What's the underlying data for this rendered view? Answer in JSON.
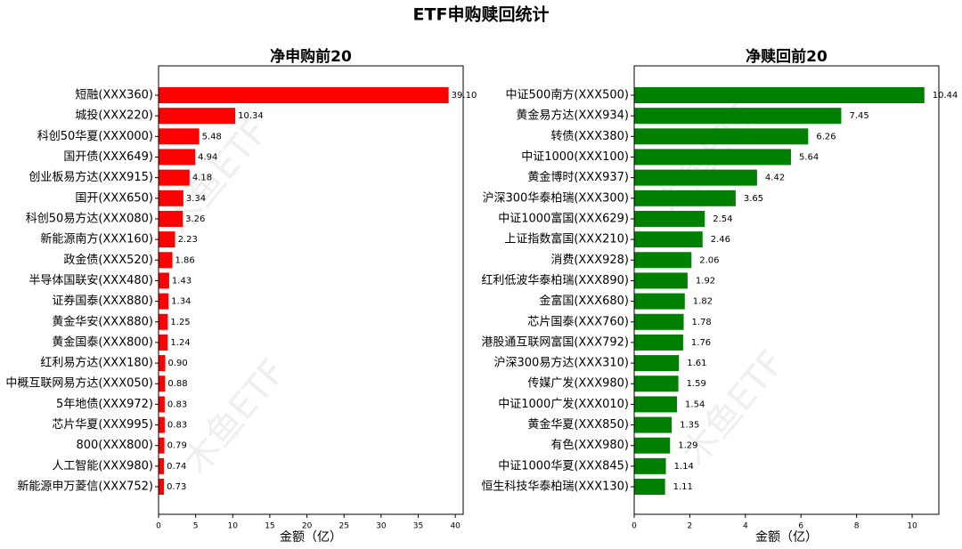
{
  "title": "ETF申购赎回统计",
  "watermark": "木鱼ETF",
  "chart_data": [
    {
      "type": "barh",
      "title": "净申购前20",
      "xlabel": "金额（亿）",
      "color": "#ff0000",
      "categories": [
        "短融(XXX360)",
        "城投(XXX220)",
        "科创50华夏(XXX000)",
        "国开债(XXX649)",
        "创业板易方达(XXX915)",
        "国开(XXX650)",
        "科创50易方达(XXX080)",
        "新能源南方(XXX160)",
        "政金债(XXX520)",
        "半导体国联安(XXX480)",
        "证券国泰(XXX880)",
        "黄金华安(XXX880)",
        "黄金国泰(XXX800)",
        "红利易方达(XXX180)",
        "中概互联网易方达(XXX050)",
        "5年地债(XXX972)",
        "芯片华夏(XXX995)",
        "800(XXX800)",
        "人工智能(XXX980)",
        "新能源申万菱信(XXX752)"
      ],
      "values": [
        39.1,
        10.34,
        5.48,
        4.94,
        4.18,
        3.34,
        3.26,
        2.23,
        1.86,
        1.43,
        1.34,
        1.25,
        1.24,
        0.9,
        0.88,
        0.83,
        0.83,
        0.79,
        0.74,
        0.73
      ],
      "value_labels": [
        "39.10",
        "10.34",
        "5.48",
        "4.94",
        "4.18",
        "3.34",
        "3.26",
        "2.23",
        "1.86",
        "1.43",
        "1.34",
        "1.25",
        "1.24",
        "0.90",
        "0.88",
        "0.83",
        "0.83",
        "0.79",
        "0.74",
        "0.73"
      ],
      "xlim": [
        0,
        41.06
      ],
      "xticks": [
        0,
        5,
        10,
        15,
        20,
        25,
        30,
        35,
        40
      ]
    },
    {
      "type": "barh",
      "title": "净赎回前20",
      "xlabel": "金额（亿）",
      "color": "#008000",
      "categories": [
        "中证500南方(XXX500)",
        "黄金易方达(XXX934)",
        "转债(XXX380)",
        "中证1000(XXX100)",
        "黄金博时(XXX937)",
        "沪深300华泰柏瑞(XXX300)",
        "中证1000富国(XXX629)",
        "上证指数富国(XXX210)",
        "消费(XXX928)",
        "红利低波华泰柏瑞(XXX890)",
        "金富国(XXX680)",
        "芯片国泰(XXX760)",
        "港股通互联网富国(XXX792)",
        "沪深300易方达(XXX310)",
        "传媒广发(XXX980)",
        "中证1000广发(XXX010)",
        "黄金华夏(XXX850)",
        "有色(XXX980)",
        "中证1000华夏(XXX845)",
        "恒生科技华泰柏瑞(XXX130)"
      ],
      "values": [
        10.44,
        7.45,
        6.26,
        5.64,
        4.42,
        3.65,
        2.54,
        2.46,
        2.06,
        1.92,
        1.82,
        1.78,
        1.76,
        1.61,
        1.59,
        1.54,
        1.35,
        1.29,
        1.14,
        1.11
      ],
      "value_labels": [
        "10.44",
        "7.45",
        "6.26",
        "5.64",
        "4.42",
        "3.65",
        "2.54",
        "2.46",
        "2.06",
        "1.92",
        "1.82",
        "1.78",
        "1.76",
        "1.61",
        "1.59",
        "1.54",
        "1.35",
        "1.29",
        "1.14",
        "1.11"
      ],
      "xlim": [
        0,
        10.96
      ],
      "xticks": [
        0,
        2,
        4,
        6,
        8,
        10
      ]
    }
  ]
}
